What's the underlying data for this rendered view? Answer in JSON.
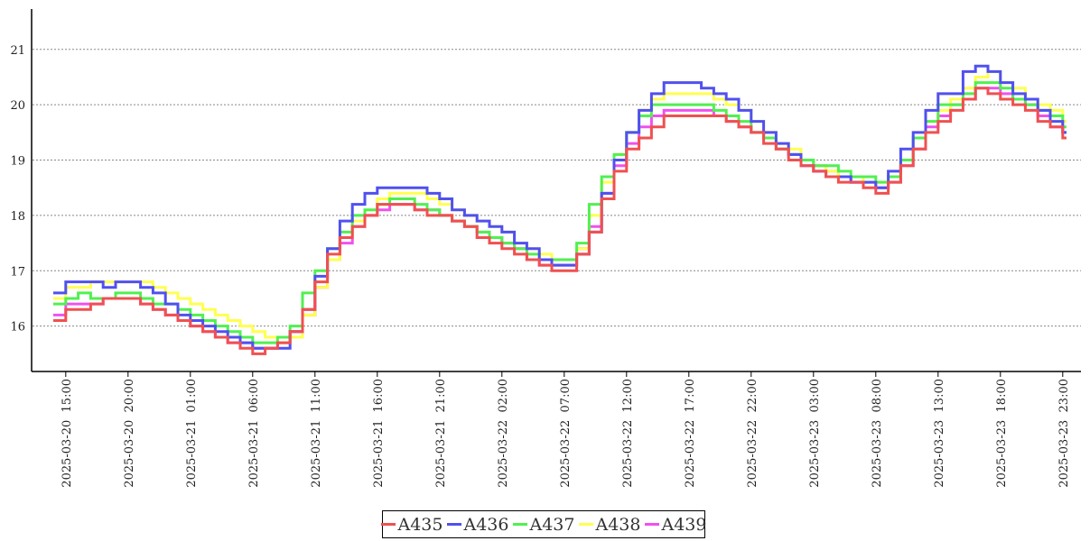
{
  "chart_data": {
    "type": "line",
    "line_style": "step",
    "title": "",
    "xlabel": "",
    "ylabel": "",
    "x": {
      "start": "2025-03-20 14:00",
      "interval_hours": 1
    },
    "x_ticks": [
      "2025-03-20  15:00",
      "2025-03-20  20:00",
      "2025-03-21  01:00",
      "2025-03-21  06:00",
      "2025-03-21  11:00",
      "2025-03-21  16:00",
      "2025-03-21  21:00",
      "2025-03-22  02:00",
      "2025-03-22  07:00",
      "2025-03-22  12:00",
      "2025-03-22  17:00",
      "2025-03-22  22:00",
      "2025-03-23  03:00",
      "2025-03-23  08:00",
      "2025-03-23  13:00",
      "2025-03-23  18:00",
      "2025-03-23  23:00"
    ],
    "y_ticks": [
      "16",
      "17",
      "18",
      "19",
      "20",
      "21"
    ],
    "ylim": [
      15.18,
      21.73
    ],
    "grid": "horizontal dotted",
    "legend_placement": "bottom",
    "series": [
      {
        "name": "A435",
        "color": "#f05050",
        "values": [
          16.1,
          16.3,
          16.3,
          16.4,
          16.5,
          16.5,
          16.5,
          16.4,
          16.3,
          16.2,
          16.1,
          16.0,
          15.9,
          15.8,
          15.7,
          15.6,
          15.5,
          15.6,
          15.7,
          15.9,
          16.3,
          16.8,
          17.3,
          17.6,
          17.8,
          18.0,
          18.2,
          18.2,
          18.2,
          18.1,
          18.0,
          18.0,
          17.9,
          17.8,
          17.6,
          17.5,
          17.4,
          17.3,
          17.2,
          17.1,
          17.0,
          17.0,
          17.3,
          17.7,
          18.3,
          18.8,
          19.2,
          19.4,
          19.6,
          19.8,
          19.8,
          19.8,
          19.8,
          19.8,
          19.7,
          19.6,
          19.5,
          19.3,
          19.2,
          19.0,
          18.9,
          18.8,
          18.7,
          18.6,
          18.6,
          18.5,
          18.4,
          18.6,
          18.9,
          19.2,
          19.5,
          19.7,
          19.9,
          20.1,
          20.3,
          20.2,
          20.1,
          20.0,
          19.9,
          19.7,
          19.6,
          19.4
        ]
      },
      {
        "name": "A436",
        "color": "#5050f0",
        "values": [
          16.6,
          16.8,
          16.8,
          16.8,
          16.7,
          16.8,
          16.8,
          16.7,
          16.6,
          16.4,
          16.2,
          16.1,
          16.0,
          15.9,
          15.8,
          15.7,
          15.6,
          15.6,
          15.6,
          15.9,
          16.3,
          16.9,
          17.4,
          17.9,
          18.2,
          18.4,
          18.5,
          18.5,
          18.5,
          18.5,
          18.4,
          18.3,
          18.1,
          18.0,
          17.9,
          17.8,
          17.7,
          17.5,
          17.4,
          17.2,
          17.1,
          17.1,
          17.3,
          17.7,
          18.4,
          19.0,
          19.5,
          19.9,
          20.2,
          20.4,
          20.4,
          20.4,
          20.3,
          20.2,
          20.1,
          19.9,
          19.7,
          19.5,
          19.3,
          19.1,
          18.9,
          18.8,
          18.7,
          18.7,
          18.6,
          18.6,
          18.5,
          18.8,
          19.2,
          19.5,
          19.9,
          20.2,
          20.2,
          20.6,
          20.7,
          20.6,
          20.4,
          20.2,
          20.1,
          19.9,
          19.7,
          19.5
        ]
      },
      {
        "name": "A437",
        "color": "#50f050",
        "values": [
          16.4,
          16.5,
          16.6,
          16.5,
          16.5,
          16.6,
          16.6,
          16.5,
          16.4,
          16.4,
          16.3,
          16.2,
          16.1,
          16.0,
          15.9,
          15.8,
          15.7,
          15.7,
          15.8,
          16.0,
          16.6,
          17.0,
          17.4,
          17.7,
          18.0,
          18.1,
          18.2,
          18.3,
          18.3,
          18.2,
          18.1,
          18.0,
          17.9,
          17.8,
          17.7,
          17.6,
          17.5,
          17.4,
          17.3,
          17.2,
          17.2,
          17.2,
          17.5,
          18.2,
          18.7,
          19.1,
          19.5,
          19.8,
          20.0,
          20.0,
          20.0,
          20.0,
          20.0,
          19.9,
          19.8,
          19.7,
          19.5,
          19.4,
          19.2,
          19.1,
          19.0,
          18.9,
          18.9,
          18.8,
          18.7,
          18.7,
          18.6,
          18.7,
          19.0,
          19.4,
          19.7,
          20.0,
          20.0,
          20.2,
          20.4,
          20.4,
          20.3,
          20.1,
          20.0,
          19.9,
          19.8,
          19.6
        ]
      },
      {
        "name": "A438",
        "color": "#ffff50",
        "values": [
          16.5,
          16.7,
          16.7,
          16.8,
          16.8,
          16.8,
          16.8,
          16.8,
          16.7,
          16.6,
          16.5,
          16.4,
          16.3,
          16.2,
          16.1,
          16.0,
          15.9,
          15.8,
          15.7,
          15.8,
          16.2,
          16.7,
          17.2,
          17.6,
          17.9,
          18.1,
          18.3,
          18.4,
          18.4,
          18.4,
          18.3,
          18.2,
          18.1,
          18.0,
          17.9,
          17.8,
          17.7,
          17.5,
          17.4,
          17.3,
          17.2,
          17.2,
          17.4,
          18.0,
          18.6,
          19.1,
          19.5,
          19.9,
          20.1,
          20.2,
          20.2,
          20.2,
          20.2,
          20.1,
          20.0,
          19.9,
          19.7,
          19.5,
          19.3,
          19.2,
          19.0,
          18.9,
          18.8,
          18.7,
          18.7,
          18.6,
          18.6,
          18.7,
          19.0,
          19.4,
          19.7,
          19.9,
          20.1,
          20.3,
          20.5,
          20.6,
          20.4,
          20.3,
          20.1,
          20.0,
          19.9,
          19.7
        ]
      },
      {
        "name": "A439",
        "color": "#f050f0",
        "values": [
          16.2,
          16.4,
          16.4,
          16.4,
          16.5,
          16.5,
          16.5,
          16.4,
          16.3,
          16.2,
          16.1,
          16.0,
          15.9,
          15.8,
          15.7,
          15.7,
          15.6,
          15.6,
          15.7,
          15.9,
          16.2,
          16.7,
          17.2,
          17.5,
          17.8,
          18.0,
          18.1,
          18.2,
          18.2,
          18.1,
          18.1,
          18.0,
          17.9,
          17.8,
          17.7,
          17.6,
          17.5,
          17.4,
          17.2,
          17.1,
          17.1,
          17.1,
          17.4,
          17.8,
          18.4,
          18.9,
          19.3,
          19.6,
          19.8,
          19.9,
          19.9,
          19.9,
          19.9,
          19.8,
          19.7,
          19.6,
          19.5,
          19.4,
          19.2,
          19.1,
          19.0,
          18.9,
          18.8,
          18.7,
          18.6,
          18.6,
          18.5,
          18.6,
          18.9,
          19.2,
          19.6,
          19.8,
          20.0,
          20.1,
          20.3,
          20.3,
          20.2,
          20.1,
          20.0,
          19.8,
          19.6,
          19.5
        ]
      }
    ]
  }
}
